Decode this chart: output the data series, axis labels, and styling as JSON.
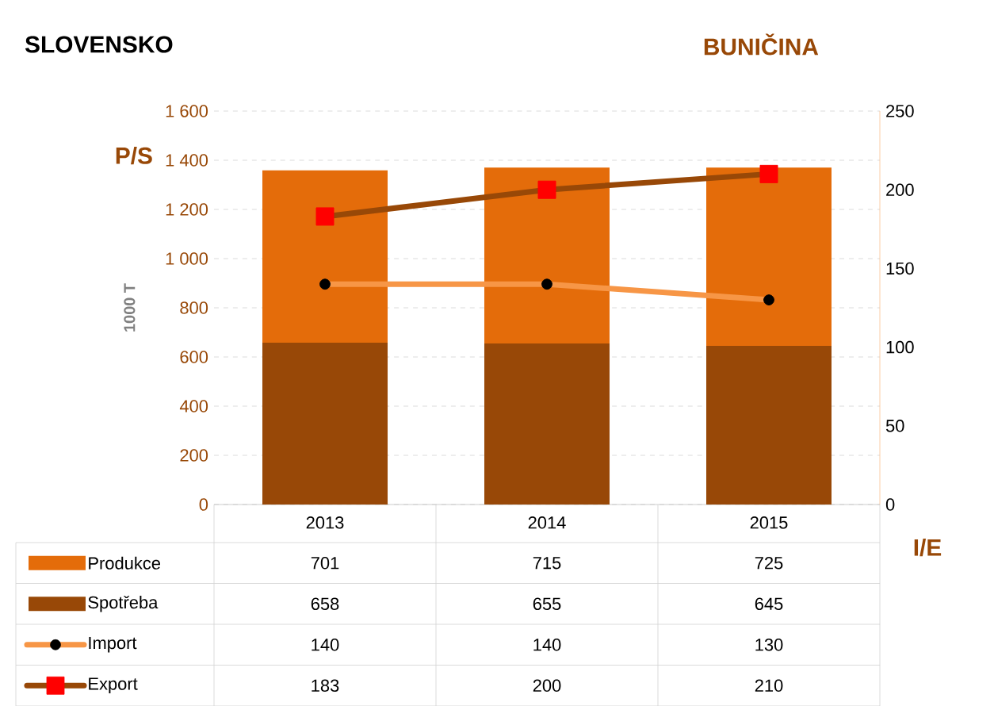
{
  "chart_data": {
    "type": "bar",
    "title": "SLOVENSKO",
    "subtitle": "BUNIČINA",
    "ylabel": "1000 T",
    "annotations": [
      "P/S",
      "I/E"
    ],
    "categories": [
      "2013",
      "2014",
      "2015"
    ],
    "stacked": true,
    "series": [
      {
        "name": "Spotřeba",
        "color": "#984807",
        "values": [
          658,
          655,
          645
        ]
      },
      {
        "name": "Produkce",
        "color": "#E46C0A",
        "values": [
          701,
          715,
          725
        ]
      },
      {
        "name": "Import",
        "type": "line",
        "axis": "y2",
        "color": "#F79646",
        "marker": "circle",
        "values": [
          140,
          140,
          130
        ]
      },
      {
        "name": "Export",
        "type": "line",
        "axis": "y2",
        "color": "#984807",
        "marker": "square",
        "values": [
          183,
          200,
          210
        ]
      }
    ],
    "ylim": [
      0,
      1600
    ],
    "yticks": [
      0,
      200,
      400,
      600,
      800,
      {
        "value": 1000,
        "label": "1 000"
      },
      {
        "value": 1200,
        "label": "1 200"
      },
      {
        "value": 1400,
        "label": "1 400"
      },
      {
        "value": 1600,
        "label": "1 600"
      }
    ],
    "y2lim": [
      0,
      250
    ],
    "y2ticks": [
      0,
      50,
      100,
      150,
      200,
      250
    ],
    "grid": "y",
    "legend": "bottom",
    "data_labels": true
  }
}
